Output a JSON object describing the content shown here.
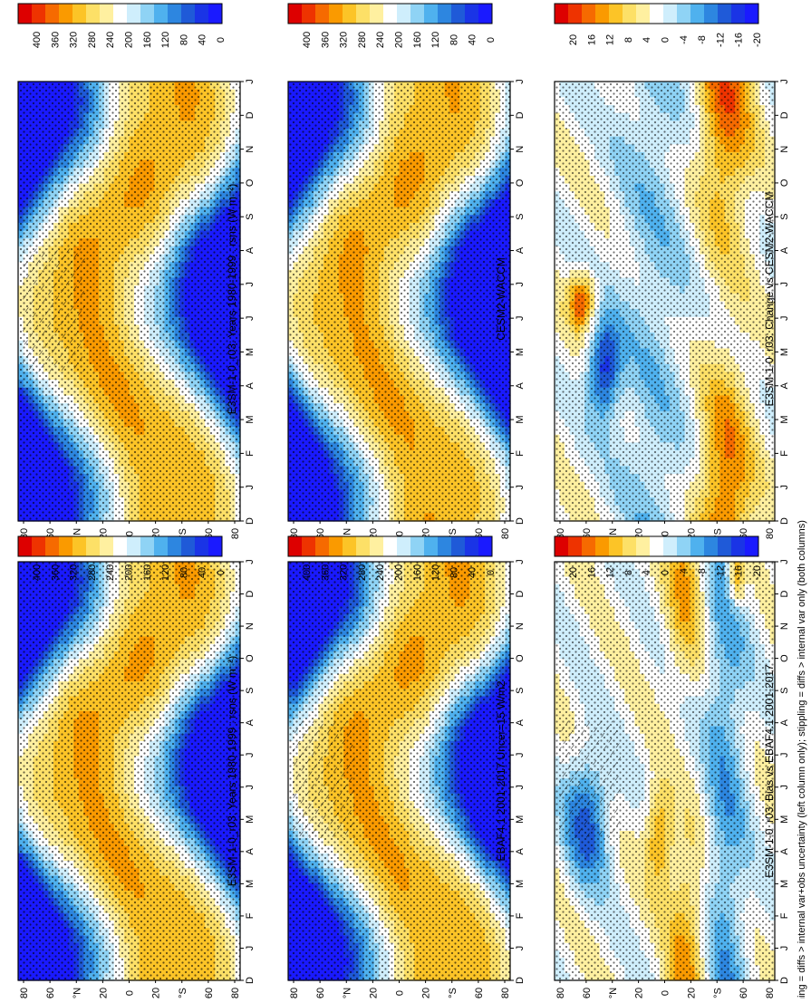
{
  "footer_note": "hatching = diffs > internal var+obs uncertainty (left column only); stippling = diffs > internal var only (both columns)",
  "months": [
    "D",
    "J",
    "F",
    "M",
    "A",
    "M",
    "J",
    "J",
    "A",
    "S",
    "O",
    "N",
    "D",
    "J"
  ],
  "lat_labels": [
    "80",
    "60",
    "°N",
    "20",
    "0",
    "20",
    "°S",
    "60",
    "80"
  ],
  "chart_data": [
    {
      "type": "heatmap",
      "title": "E3SM-1-0_r03: Years 1980-1999 : rsns (W m⁻²)",
      "scale": "absolute",
      "colorbar": [
        "400",
        "360",
        "320",
        "280",
        "240",
        "200",
        "160",
        "120",
        "80",
        "40",
        "0"
      ]
    },
    {
      "type": "heatmap",
      "title": "E3SM-1-0_r03: Years 1980-1999 : rsns (W m⁻²)",
      "scale": "absolute",
      "colorbar": [
        "400",
        "360",
        "320",
        "280",
        "240",
        "200",
        "160",
        "120",
        "80",
        "40",
        "0"
      ]
    },
    {
      "type": "heatmap",
      "title": "CESM2-WACCM",
      "scale": "absolute",
      "colorbar": [
        "400",
        "360",
        "320",
        "280",
        "240",
        "200",
        "160",
        "120",
        "80",
        "40",
        "0"
      ]
    },
    {
      "type": "heatmap",
      "title": "EBAF4.1 2001-2017 Uncer=15 W/m2",
      "scale": "absolute",
      "colorbar": [
        "400",
        "360",
        "320",
        "280",
        "240",
        "200",
        "160",
        "120",
        "80",
        "40",
        "0"
      ]
    },
    {
      "type": "heatmap",
      "title": "E3SM-1-0_r03: Change vs CESM2-WACCM",
      "scale": "difference",
      "colorbar": [
        "20",
        "16",
        "12",
        "8",
        "4",
        "0",
        "-4",
        "-8",
        "-12",
        "-16",
        "-20"
      ]
    },
    {
      "type": "heatmap",
      "title": "E3SM-1-0_r03: Bias vs EBAF4.1 2001-2017",
      "scale": "difference",
      "colorbar": [
        "20",
        "16",
        "12",
        "8",
        "4",
        "0",
        "-4",
        "-8",
        "-12",
        "-16",
        "-20"
      ]
    }
  ]
}
